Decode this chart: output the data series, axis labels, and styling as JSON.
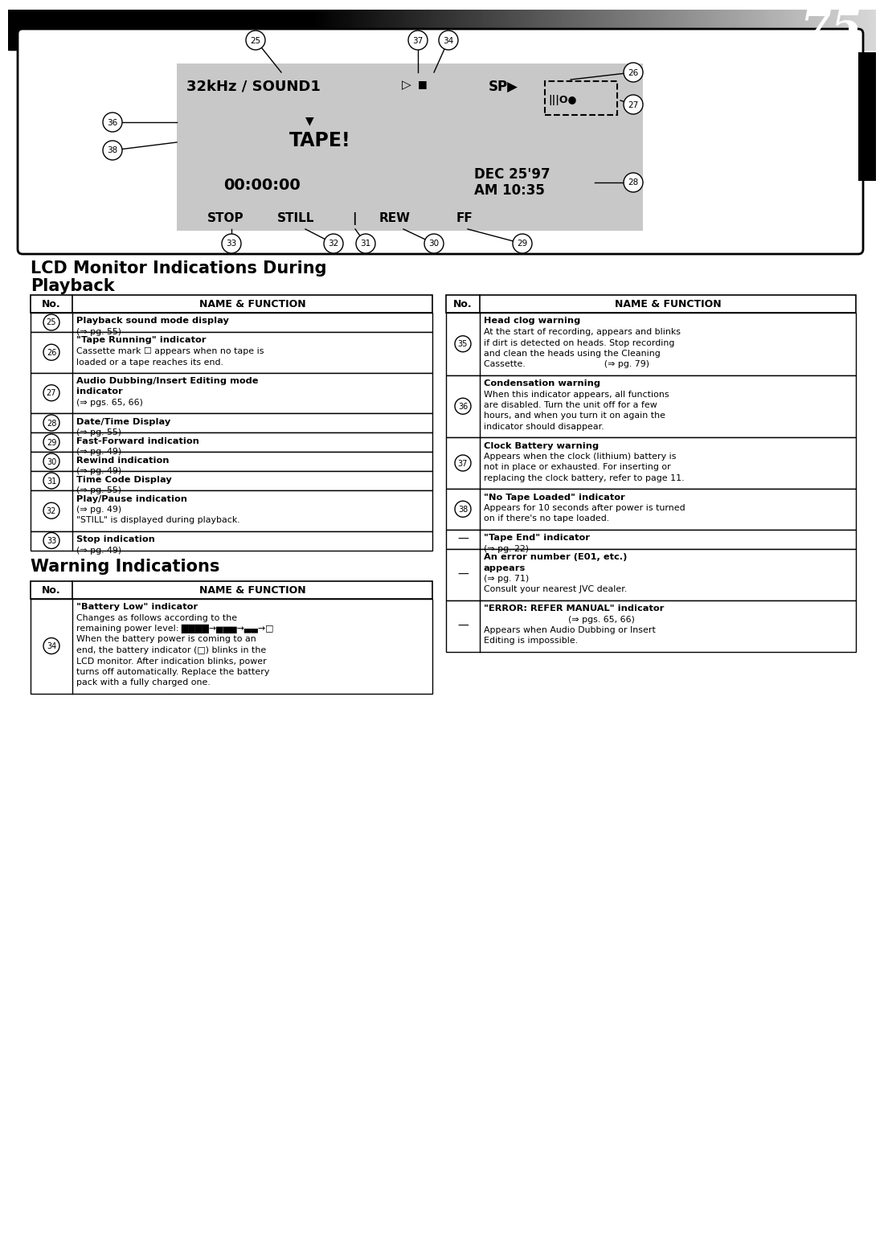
{
  "page_number": "75",
  "background_color": "#ffffff",
  "left_table_rows": [
    [
      "25",
      "Playback sound mode display",
      "(⇒ pg. 55)",
      1
    ],
    [
      "26",
      "\"Tape Running\" indicator",
      "Cassette mark appears when no tape is\nloaded or a tape reaches its end.",
      2
    ],
    [
      "27",
      "Audio Dubbing/Insert Editing mode\nindicator",
      "(⇒ pgs. 65, 66)",
      2
    ],
    [
      "28",
      "Date/Time Display",
      "(⇒ pg. 55)",
      1
    ],
    [
      "29",
      "Fast-Forward indication",
      "(⇒ pg. 49)",
      1
    ],
    [
      "30",
      "Rewind indication",
      "(⇒ pg. 49)",
      1
    ],
    [
      "31",
      "Time Code Display",
      "(⇒ pg. 55)",
      1
    ],
    [
      "32",
      "Play/Pause indication",
      "(⇒ pg. 49)\n\"STILL\" is displayed during playback.",
      2
    ],
    [
      "33",
      "Stop indication",
      "(⇒ pg. 49)",
      1
    ]
  ],
  "warning_table_rows": [
    [
      "34",
      "\"Battery Low\" indicator",
      "Changes as follows according to the\nremaining power level:\nWhen the battery power is coming to an\nend, the battery indicator blinks in the\nLCD monitor. After indication blinks, power\nturns off automatically. Replace the battery\npack with a fully charged one.",
      7
    ]
  ],
  "right_table_rows": [
    [
      "35",
      "Head clog warning",
      "At the start of recording, appears and blinks\nif dirt is detected on heads. Stop recording\nand clean the heads using the Cleaning\nCassette.                            (⇒ pg. 79)",
      5
    ],
    [
      "36",
      "Condensation warning",
      "When this indicator appears, all functions\nare disabled. Turn the unit off for a few\nhours, and when you turn it on again the\nindicator should disappear.",
      5
    ],
    [
      "37",
      "Clock Battery warning",
      "Appears when the clock (lithium) battery is\nnot in place or exhausted. For inserting or\nreplacing the clock battery, refer to page 11.",
      4
    ],
    [
      "38",
      "\"No Tape Loaded\" indicator",
      "Appears for 10 seconds after power is turned\non if there's no tape loaded.",
      3
    ],
    [
      "-",
      "\"Tape End\" indicator",
      "(⇒ pg. 22)",
      1
    ],
    [
      "-",
      "An error number (E01, etc.)\nappears",
      "(⇒ pg. 71)\nConsult your nearest JVC dealer.",
      3
    ],
    [
      "-",
      "\"ERROR: REFER MANUAL\" indicator",
      "                              (⇒ pgs. 65, 66)\nAppears when Audio Dubbing or Insert\nEditing is impossible.",
      4
    ]
  ]
}
